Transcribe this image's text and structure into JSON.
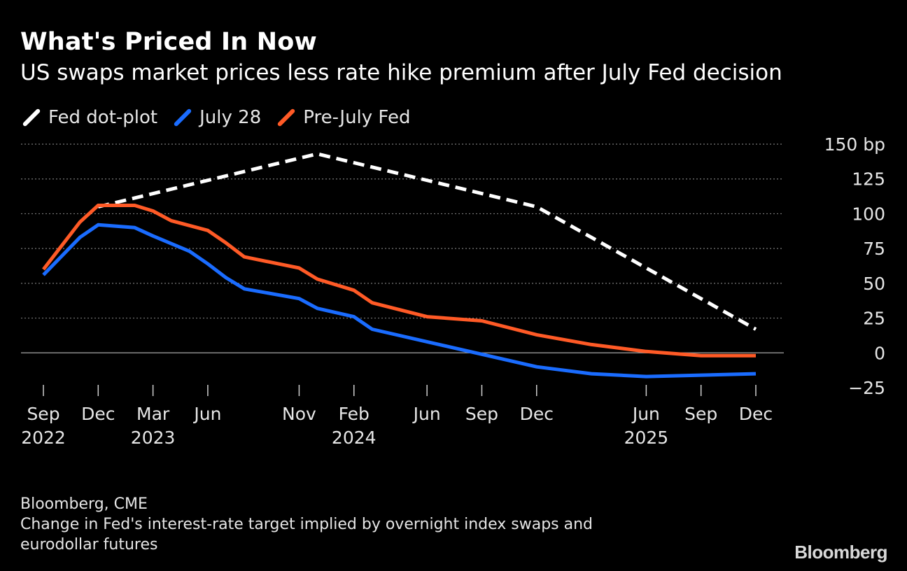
{
  "header": {
    "title": "What's Priced In Now",
    "subtitle": "US swaps market prices less rate hike premium after July Fed decision"
  },
  "legend": {
    "items": [
      {
        "label": "Fed dot-plot",
        "color": "#ffffff"
      },
      {
        "label": "July 28",
        "color": "#1a6cff"
      },
      {
        "label": "Pre-July Fed",
        "color": "#ff5a26"
      }
    ]
  },
  "footer": {
    "source": "Bloomberg, CME",
    "note_line1": "Change in Fed's interest-rate target implied by overnight index swaps and",
    "note_line2": "eurodollar futures",
    "brand": "Bloomberg"
  },
  "chart_data": {
    "type": "line",
    "title": "What's Priced In Now",
    "subtitle": "US swaps market prices less rate hike premium after July Fed decision",
    "ylabel": "",
    "y_unit": "bp",
    "ylim": [
      -25,
      150
    ],
    "y_ticks": [
      150,
      125,
      100,
      75,
      50,
      25,
      0,
      -25
    ],
    "y_tick_labels": [
      "150 bp",
      "125",
      "100",
      "75",
      "50",
      "25",
      "0",
      "−25"
    ],
    "grid": true,
    "legend_position": "top-left",
    "x_unit": "months",
    "x_ticks": [
      {
        "month": "2022-09",
        "label": "Sep",
        "year": "2022"
      },
      {
        "month": "2022-12",
        "label": "Dec",
        "year": ""
      },
      {
        "month": "2023-03",
        "label": "Mar",
        "year": "2023"
      },
      {
        "month": "2023-06",
        "label": "Jun",
        "year": ""
      },
      {
        "month": "2023-11",
        "label": "Nov",
        "year": ""
      },
      {
        "month": "2024-02",
        "label": "Feb",
        "year": "2024"
      },
      {
        "month": "2024-06",
        "label": "Jun",
        "year": ""
      },
      {
        "month": "2024-09",
        "label": "Sep",
        "year": ""
      },
      {
        "month": "2024-12",
        "label": "Dec",
        "year": ""
      },
      {
        "month": "2025-06",
        "label": "Jun",
        "year": "2025"
      },
      {
        "month": "2025-09",
        "label": "Sep",
        "year": ""
      },
      {
        "month": "2025-12",
        "label": "Dec",
        "year": ""
      }
    ],
    "series": [
      {
        "name": "Fed dot-plot",
        "color": "#ffffff",
        "style": "dashed",
        "points": [
          [
            "2022-12",
            105
          ],
          [
            "2023-12",
            143
          ],
          [
            "2024-12",
            105
          ],
          [
            "2025-12",
            17
          ]
        ]
      },
      {
        "name": "July 28",
        "color": "#1a6cff",
        "style": "solid",
        "points": [
          [
            "2022-09",
            56
          ],
          [
            "2022-11",
            83
          ],
          [
            "2022-12",
            92
          ],
          [
            "2023-02",
            90
          ],
          [
            "2023-03",
            84
          ],
          [
            "2023-05",
            73
          ],
          [
            "2023-06",
            64
          ],
          [
            "2023-07",
            54
          ],
          [
            "2023-08",
            46
          ],
          [
            "2023-11",
            39
          ],
          [
            "2023-12",
            32
          ],
          [
            "2024-02",
            26
          ],
          [
            "2024-03",
            17
          ],
          [
            "2024-06",
            8
          ],
          [
            "2024-09",
            -1
          ],
          [
            "2024-12",
            -10
          ],
          [
            "2025-03",
            -15
          ],
          [
            "2025-06",
            -17
          ],
          [
            "2025-09",
            -16
          ],
          [
            "2025-12",
            -15
          ]
        ]
      },
      {
        "name": "Pre-July Fed",
        "color": "#ff5a26",
        "style": "solid",
        "points": [
          [
            "2022-09",
            60
          ],
          [
            "2022-11",
            94
          ],
          [
            "2022-12",
            106
          ],
          [
            "2023-02",
            106
          ],
          [
            "2023-03",
            102
          ],
          [
            "2023-04",
            95
          ],
          [
            "2023-06",
            88
          ],
          [
            "2023-07",
            79
          ],
          [
            "2023-08",
            69
          ],
          [
            "2023-11",
            61
          ],
          [
            "2023-12",
            53
          ],
          [
            "2024-02",
            45
          ],
          [
            "2024-03",
            36
          ],
          [
            "2024-06",
            26
          ],
          [
            "2024-09",
            23
          ],
          [
            "2024-12",
            13
          ],
          [
            "2025-03",
            6
          ],
          [
            "2025-06",
            1
          ],
          [
            "2025-09",
            -2
          ],
          [
            "2025-12",
            -2
          ]
        ]
      }
    ]
  }
}
